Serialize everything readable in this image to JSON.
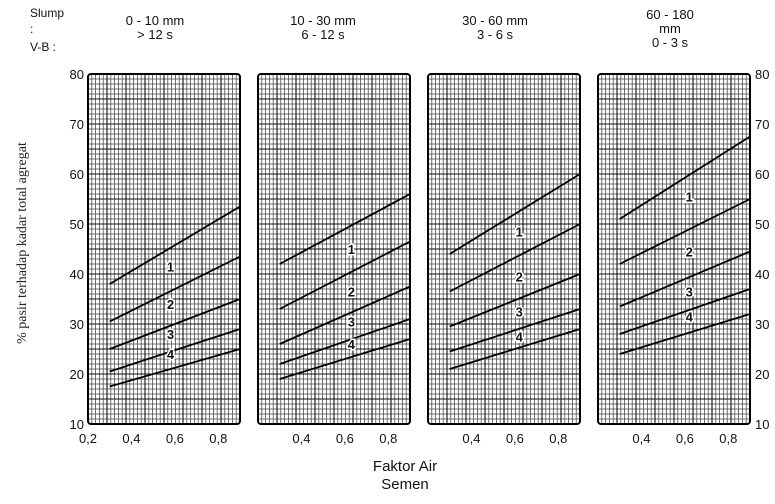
{
  "header_left": {
    "slump": "Slump",
    "colon": ":",
    "vb": "V-B :"
  },
  "chart_data": {
    "type": "line",
    "xlabel": "Faktor Air\nSemen",
    "ylabel": "% pasir terhadap kadar total agregat",
    "ylim": [
      10,
      80
    ],
    "yticks": [
      10,
      20,
      30,
      40,
      50,
      60,
      70,
      80
    ],
    "xlim": [
      0.2,
      0.9
    ],
    "xtick_labels": [
      "0,2",
      "0,4",
      "0,6",
      "0,8"
    ],
    "xticks": [
      0.2,
      0.4,
      0.6,
      0.8
    ],
    "grid": true,
    "panels": [
      {
        "header": "0 - 10 mm\n> 12 s",
        "series": [
          {
            "name": "1",
            "x": [
              0.3,
              0.9
            ],
            "values": [
              38,
              53.5
            ]
          },
          {
            "name": "2",
            "x": [
              0.3,
              0.9
            ],
            "values": [
              30.5,
              43.5
            ]
          },
          {
            "name": "3",
            "x": [
              0.3,
              0.9
            ],
            "values": [
              25,
              35
            ]
          },
          {
            "name": "4",
            "x": [
              0.3,
              0.9
            ],
            "values": [
              20.5,
              29
            ]
          },
          {
            "name": "",
            "x": [
              0.3,
              0.9
            ],
            "values": [
              17.5,
              25
            ]
          }
        ],
        "labels": [
          {
            "text": "1",
            "x": 0.58,
            "y": 40.5
          },
          {
            "text": "2",
            "x": 0.58,
            "y": 33
          },
          {
            "text": "3",
            "x": 0.58,
            "y": 27
          },
          {
            "text": "4",
            "x": 0.58,
            "y": 23
          }
        ]
      },
      {
        "header": "10 - 30 mm\n6 - 12 s",
        "series": [
          {
            "name": "1",
            "x": [
              0.3,
              0.9
            ],
            "values": [
              42,
              56
            ]
          },
          {
            "name": "2",
            "x": [
              0.3,
              0.9
            ],
            "values": [
              33,
              46.5
            ]
          },
          {
            "name": "3",
            "x": [
              0.3,
              0.9
            ],
            "values": [
              26,
              37.5
            ]
          },
          {
            "name": "4",
            "x": [
              0.3,
              0.9
            ],
            "values": [
              22,
              31
            ]
          },
          {
            "name": "",
            "x": [
              0.3,
              0.9
            ],
            "values": [
              19,
              27
            ]
          }
        ],
        "labels": [
          {
            "text": "1",
            "x": 0.63,
            "y": 44
          },
          {
            "text": "2",
            "x": 0.63,
            "y": 35.5
          },
          {
            "text": "3",
            "x": 0.63,
            "y": 29.5
          },
          {
            "text": "4",
            "x": 0.63,
            "y": 25
          }
        ]
      },
      {
        "header": "30 - 60 mm\n3 - 6 s",
        "series": [
          {
            "name": "1",
            "x": [
              0.3,
              0.9
            ],
            "values": [
              44,
              60
            ]
          },
          {
            "name": "2",
            "x": [
              0.3,
              0.9
            ],
            "values": [
              36.5,
              50
            ]
          },
          {
            "name": "3",
            "x": [
              0.3,
              0.9
            ],
            "values": [
              29.5,
              40
            ]
          },
          {
            "name": "4",
            "x": [
              0.3,
              0.9
            ],
            "values": [
              24.5,
              33
            ]
          },
          {
            "name": "",
            "x": [
              0.3,
              0.9
            ],
            "values": [
              21,
              29
            ]
          }
        ],
        "labels": [
          {
            "text": "1",
            "x": 0.62,
            "y": 47.5
          },
          {
            "text": "2",
            "x": 0.62,
            "y": 38.5
          },
          {
            "text": "3",
            "x": 0.62,
            "y": 31.5
          },
          {
            "text": "4",
            "x": 0.62,
            "y": 26.5
          }
        ]
      },
      {
        "header": "60 - 180\nmm\n0 - 3 s",
        "series": [
          {
            "name": "1",
            "x": [
              0.3,
              0.9
            ],
            "values": [
              51,
              67.5
            ]
          },
          {
            "name": "2",
            "x": [
              0.3,
              0.9
            ],
            "values": [
              42,
              55
            ]
          },
          {
            "name": "3",
            "x": [
              0.3,
              0.9
            ],
            "values": [
              33.5,
              44.5
            ]
          },
          {
            "name": "4",
            "x": [
              0.3,
              0.9
            ],
            "values": [
              28,
              37
            ]
          },
          {
            "name": "",
            "x": [
              0.3,
              0.9
            ],
            "values": [
              24,
              32
            ]
          }
        ],
        "labels": [
          {
            "text": "1",
            "x": 0.62,
            "y": 54.5
          },
          {
            "text": "2",
            "x": 0.62,
            "y": 43.5
          },
          {
            "text": "3",
            "x": 0.62,
            "y": 35.5
          },
          {
            "text": "4",
            "x": 0.62,
            "y": 30.5
          }
        ]
      }
    ]
  }
}
